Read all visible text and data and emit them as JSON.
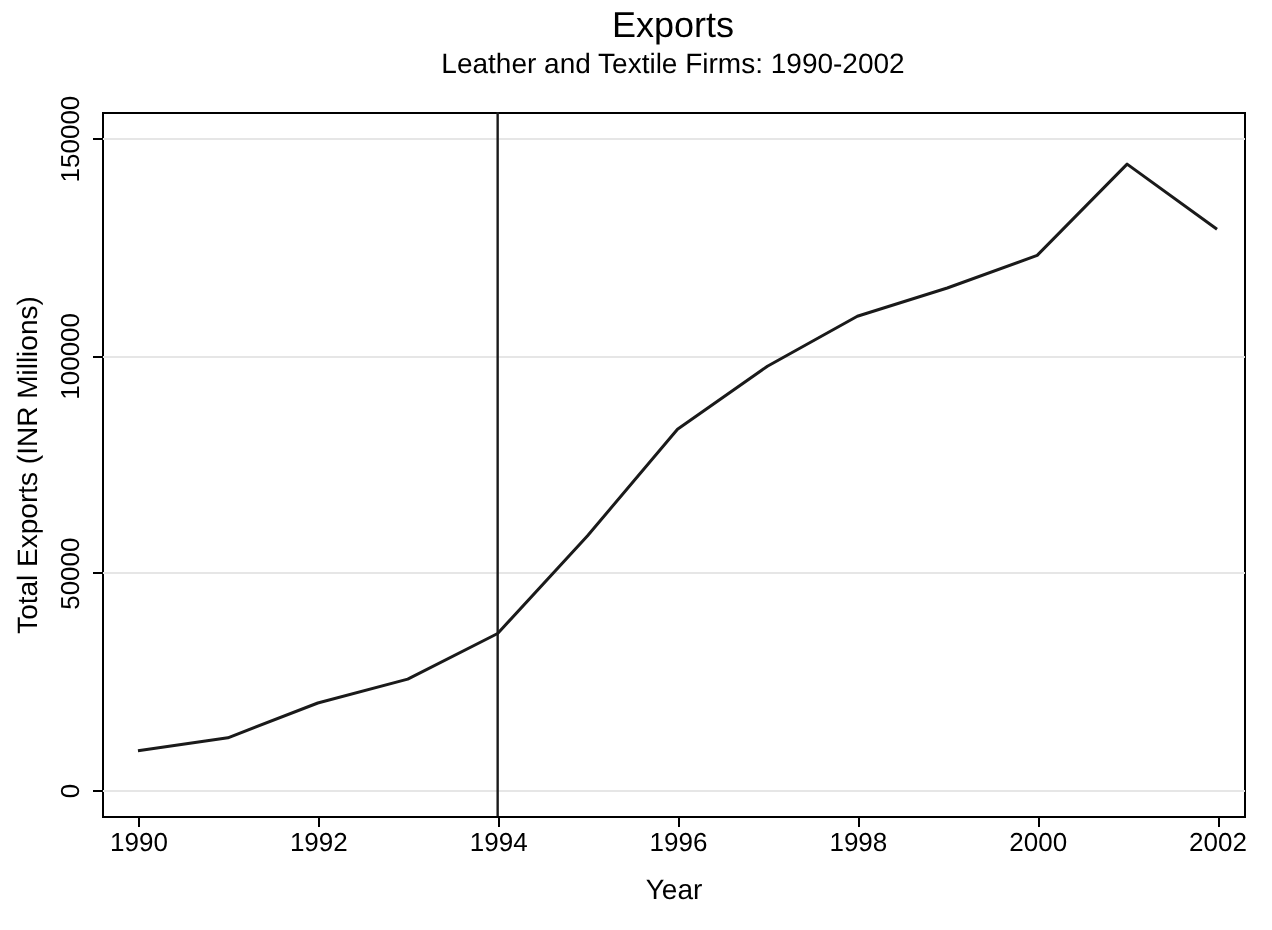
{
  "chart_data": {
    "type": "line",
    "title": "Exports",
    "subtitle": "Leather and Textile Firms: 1990-2002",
    "xlabel": "Year",
    "ylabel": "Total Exports (INR Millions)",
    "x": [
      1990,
      1991,
      1992,
      1993,
      1994,
      1995,
      1996,
      1997,
      1998,
      1999,
      2000,
      2001,
      2002
    ],
    "series": [
      {
        "color": "#1a1a1a",
        "values": [
          9000,
          12000,
          20000,
          25500,
          36000,
          58500,
          83000,
          97500,
          109000,
          115500,
          123000,
          144000,
          129000
        ]
      }
    ],
    "xlim": [
      1989.6,
      2002.3
    ],
    "xticks": [
      1990,
      1992,
      1994,
      1996,
      1998,
      2000,
      2002
    ],
    "ylim": [
      -6000,
      156000
    ],
    "yticks": [
      0,
      50000,
      100000,
      150000
    ],
    "grid": "y",
    "marker": "none",
    "line_style": "solid",
    "ref_lines": [
      {
        "axis": "x",
        "value": 1994,
        "color": "#1a1a1a"
      }
    ]
  }
}
